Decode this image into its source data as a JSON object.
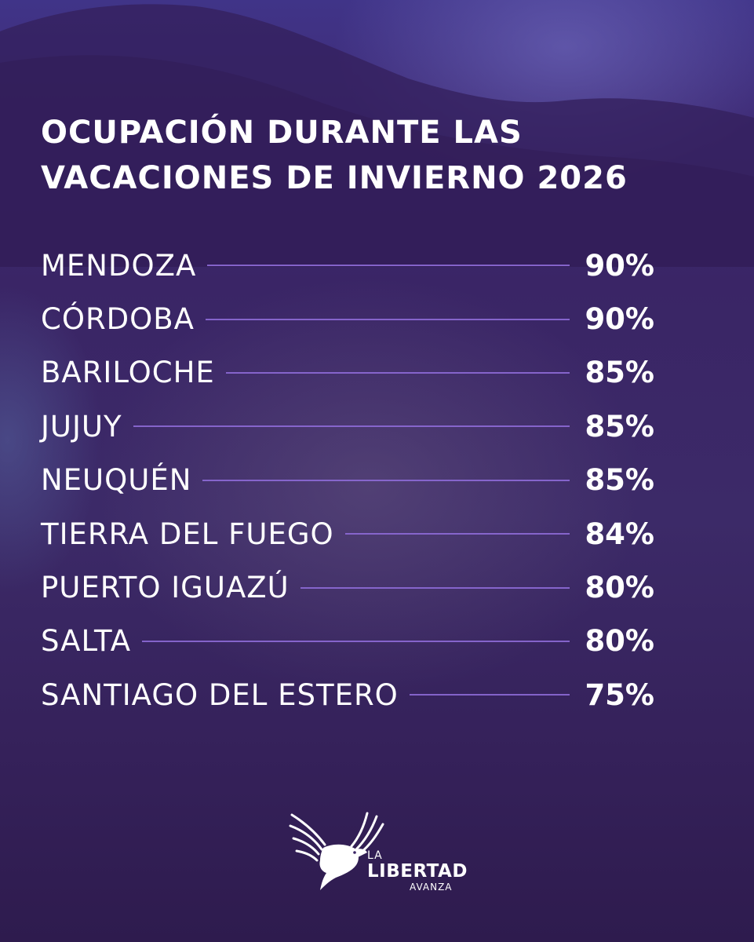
{
  "title": {
    "line1": "OCUPACIÓN DURANTE LAS",
    "line2": "VACACIONES DE INVIERNO 2026"
  },
  "rows": [
    {
      "name": "MENDOZA",
      "value": "90%"
    },
    {
      "name": "CÓRDOBA",
      "value": "90%"
    },
    {
      "name": "BARILOCHE",
      "value": "85%"
    },
    {
      "name": "JUJUY",
      "value": "85%"
    },
    {
      "name": "NEUQUÉN",
      "value": "85%"
    },
    {
      "name": "TIERRA DEL FUEGO",
      "value": "84%"
    },
    {
      "name": "PUERTO IGUAZÚ",
      "value": "80%"
    },
    {
      "name": "SALTA",
      "value": "80%"
    },
    {
      "name": "SANTIAGO DEL ESTERO",
      "value": "75%"
    }
  ],
  "logo": {
    "line1": "LA",
    "line2": "LIBERTAD",
    "line3": "AVANZA",
    "icon": "eagle-icon"
  },
  "colors": {
    "background": "#3a2566",
    "accent_line": "#8d6ad6",
    "text": "#ffffff"
  }
}
